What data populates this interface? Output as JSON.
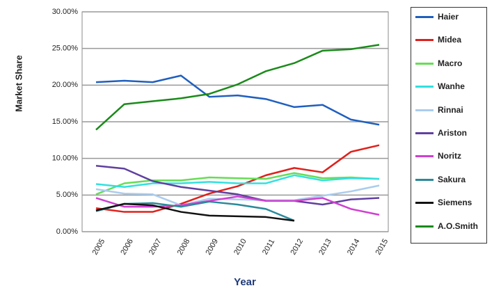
{
  "chart_data": {
    "type": "line",
    "x_label": "Year",
    "y_label": "Market Share",
    "categories": [
      "2005",
      "2006",
      "2007",
      "2008",
      "2009",
      "2010",
      "2011",
      "2012",
      "2013",
      "2014",
      "2015"
    ],
    "ylim": [
      0,
      30
    ],
    "yticks": [
      {
        "value": 0,
        "label": "0.00%"
      },
      {
        "value": 5,
        "label": "5.00%"
      },
      {
        "value": 10,
        "label": "10.00%"
      },
      {
        "value": 15,
        "label": "15.00%"
      },
      {
        "value": 20,
        "label": "20.00%"
      },
      {
        "value": 25,
        "label": "25.00%"
      },
      {
        "value": 30,
        "label": "30.00%"
      }
    ],
    "grid": true,
    "legend": "right",
    "series": [
      {
        "name": "Haier",
        "color": "#1f5fbf",
        "values": [
          20.4,
          20.6,
          20.4,
          21.3,
          18.4,
          18.6,
          18.1,
          17.0,
          17.3,
          15.3,
          14.6
        ]
      },
      {
        "name": "Midea",
        "color": "#e0201b",
        "values": [
          3.2,
          2.7,
          2.7,
          3.8,
          5.2,
          6.2,
          7.7,
          8.7,
          8.1,
          10.9,
          11.8
        ]
      },
      {
        "name": "Macro",
        "color": "#66dd55",
        "values": [
          5.1,
          6.6,
          7.0,
          7.0,
          7.4,
          7.3,
          7.2,
          8.0,
          7.3,
          7.4,
          7.2
        ]
      },
      {
        "name": "Wanhe",
        "color": "#33e0e0",
        "values": [
          6.5,
          6.1,
          6.6,
          6.6,
          6.8,
          6.6,
          6.6,
          7.7,
          7.0,
          7.3,
          7.2
        ]
      },
      {
        "name": "Rinnai",
        "color": "#aaccee",
        "values": [
          5.8,
          5.2,
          5.1,
          3.6,
          4.5,
          4.4,
          4.3,
          4.3,
          4.9,
          5.5,
          6.3
        ]
      },
      {
        "name": "Ariston",
        "color": "#6040a0",
        "values": [
          9.0,
          8.6,
          6.9,
          6.1,
          5.6,
          5.1,
          4.2,
          4.2,
          3.7,
          4.4,
          4.6
        ]
      },
      {
        "name": "Noritz",
        "color": "#d040d0",
        "values": [
          4.6,
          3.4,
          3.4,
          3.6,
          4.2,
          4.8,
          4.2,
          4.2,
          4.6,
          3.1,
          2.3
        ]
      },
      {
        "name": "Sakura",
        "color": "#2a8a9a",
        "values": [
          2.8,
          3.8,
          3.9,
          3.4,
          4.1,
          3.7,
          3.1,
          1.5,
          null,
          null,
          null
        ]
      },
      {
        "name": "Siemens",
        "color": "#111111",
        "values": [
          2.9,
          3.8,
          3.6,
          2.7,
          2.2,
          2.1,
          2.0,
          1.5,
          null,
          null,
          null
        ]
      },
      {
        "name": "A.O.Smith",
        "color": "#1a8a1a",
        "values": [
          13.9,
          17.4,
          17.8,
          18.2,
          18.8,
          20.1,
          21.9,
          23.0,
          24.7,
          24.9,
          25.5
        ]
      }
    ]
  }
}
